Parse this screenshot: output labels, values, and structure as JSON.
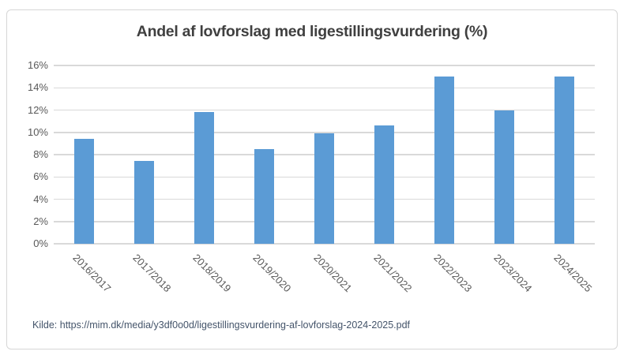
{
  "chart": {
    "source": "Kilde: https://mim.dk/media/y3df0o0d/ligestillingsvurdering-af-lovforslag-2024-2025.pdf"
  },
  "chart_data": {
    "type": "bar",
    "title": "Andel af lovforslag med ligestillingsvurdering (%)",
    "categories": [
      "2016/2017",
      "2017/2018",
      "2018/2019",
      "2019/2020",
      "2020/2021",
      "2021/2022",
      "2022/2023",
      "2023/2024",
      "2024/2025"
    ],
    "values": [
      9.4,
      7.4,
      11.8,
      8.5,
      9.9,
      10.6,
      15.0,
      12.0,
      15.0
    ],
    "xlabel": "",
    "ylabel": "",
    "ylim": [
      0,
      16
    ],
    "ytick_step": 2,
    "ytick_suffix": "%",
    "grid": true,
    "legend": false,
    "bar_color": "#5b9bd5",
    "gridline_color": "#d9d9d9",
    "title_color": "#404040",
    "tick_label_color": "#595959",
    "source_color": "#44546a",
    "frame_border_color": "#d6d6d6"
  }
}
